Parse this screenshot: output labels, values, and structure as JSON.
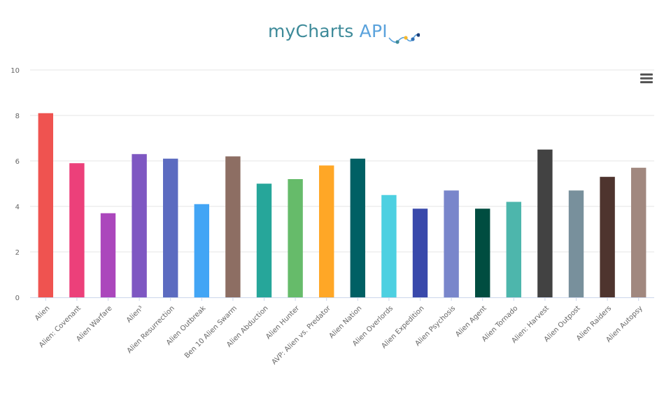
{
  "brand": {
    "name": "myCharts",
    "suffix": "API"
  },
  "menu": {
    "icon": "hamburger-menu-icon"
  },
  "colors": {
    "grid": "#e6e6e6",
    "axis": "#ccd6eb",
    "logo_line": "#5aa2dc",
    "logo_dots": [
      "#3d8a99",
      "#f5b82e",
      "#2f6fb5",
      "#1a3f7a"
    ]
  },
  "chart_data": {
    "type": "bar",
    "title": "",
    "xlabel": "",
    "ylabel": "",
    "ylim": [
      0,
      10
    ],
    "yticks": [
      "0",
      "2",
      "4",
      "6",
      "8",
      "10"
    ],
    "grid": true,
    "categories": [
      "Alien",
      "Alien: Covenant",
      "Alien Warfare",
      "Alien³",
      "Alien Resurrection",
      "Alien Outbreak",
      "Ben 10 Alien Swarm",
      "Alien Abduction",
      "Alien Hunter",
      "AVP: Alien vs. Predator",
      "Alien Nation",
      "Alien Overlords",
      "Alien Expedition",
      "Alien Psychosis",
      "Alien Agent",
      "Alien Tornado",
      "Alien: Harvest",
      "Alien Outpost",
      "Alien Raiders",
      "Alien Autopsy"
    ],
    "values": [
      8.1,
      5.9,
      3.7,
      6.3,
      6.1,
      4.1,
      6.2,
      5.0,
      5.2,
      5.8,
      6.1,
      4.5,
      3.9,
      4.7,
      3.9,
      4.2,
      6.5,
      4.7,
      5.3,
      5.7
    ],
    "colors": [
      "#ef5350",
      "#ec407a",
      "#ab47bc",
      "#7e57c2",
      "#5c6bc0",
      "#42a5f5",
      "#8d6e63",
      "#26a69a",
      "#66bb6a",
      "#ffa726",
      "#006064",
      "#4dd0e1",
      "#3949ab",
      "#7986cb",
      "#004d40",
      "#4db6ac",
      "#424242",
      "#78909c",
      "#4e342e",
      "#a1887f"
    ]
  }
}
